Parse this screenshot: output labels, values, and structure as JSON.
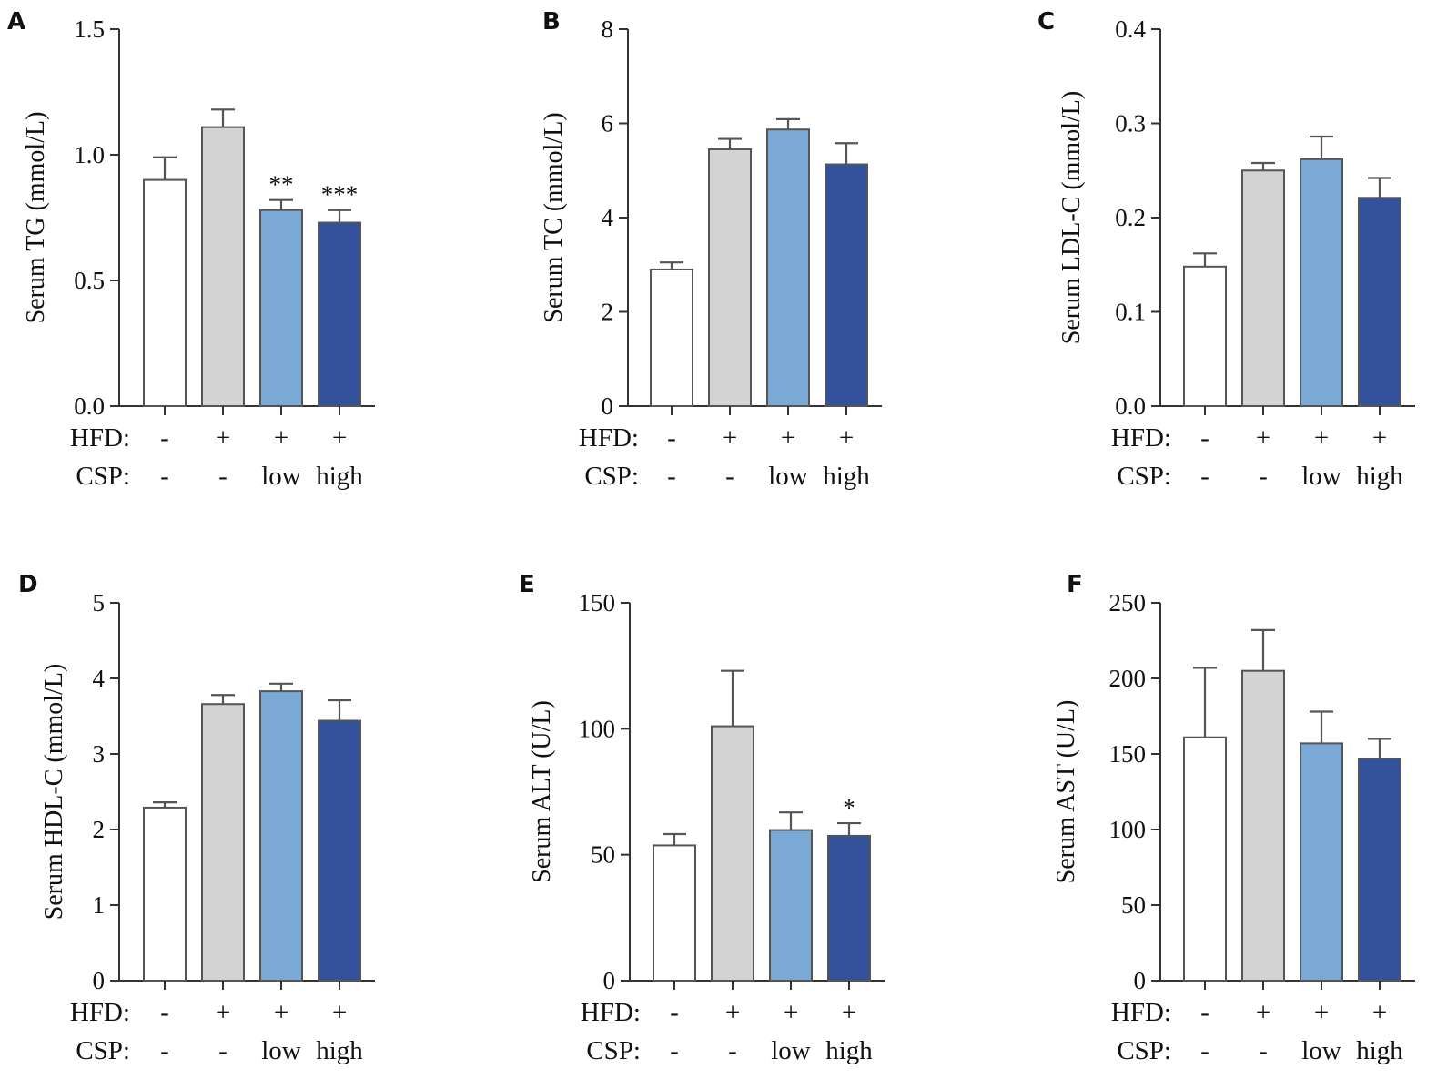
{
  "colors": {
    "bar_fills": [
      "#ffffff",
      "#d3d3d3",
      "#7ba9d6",
      "#34529c"
    ],
    "bar_outline": "#555555",
    "axis": "#333333"
  },
  "row_labels": [
    "HFD:",
    "CSP:"
  ],
  "groups": [
    {
      "hfd": "-",
      "csp": "-"
    },
    {
      "hfd": "+",
      "csp": "-"
    },
    {
      "hfd": "+",
      "csp": "low"
    },
    {
      "hfd": "+",
      "csp": "high"
    }
  ],
  "chart_data": [
    {
      "panel": "A",
      "type": "bar",
      "ylabel": "Serum TG (mmol/L)",
      "ylim": [
        0,
        1.5
      ],
      "yticks": [
        "0.0",
        "0.5",
        "1.0",
        "1.5"
      ],
      "ytick_values": [
        0,
        0.5,
        1.0,
        1.5
      ],
      "values": [
        0.9,
        1.11,
        0.78,
        0.73
      ],
      "errors": [
        0.09,
        0.07,
        0.04,
        0.05
      ],
      "significance": [
        "",
        "",
        "**",
        "***"
      ]
    },
    {
      "panel": "B",
      "type": "bar",
      "ylabel": "Serum TC (mmol/L)",
      "ylim": [
        0,
        8
      ],
      "yticks": [
        "0",
        "2",
        "4",
        "6",
        "8"
      ],
      "ytick_values": [
        0,
        2,
        4,
        6,
        8
      ],
      "values": [
        2.9,
        5.45,
        5.87,
        5.13
      ],
      "errors": [
        0.15,
        0.22,
        0.22,
        0.45
      ],
      "significance": [
        "",
        "",
        "",
        ""
      ]
    },
    {
      "panel": "C",
      "type": "bar",
      "ylabel": "Serum LDL-C (mmol/L)",
      "ylim": [
        0,
        0.4
      ],
      "yticks": [
        "0.0",
        "0.1",
        "0.2",
        "0.3",
        "0.4"
      ],
      "ytick_values": [
        0,
        0.1,
        0.2,
        0.3,
        0.4
      ],
      "values": [
        0.148,
        0.25,
        0.262,
        0.221
      ],
      "errors": [
        0.014,
        0.008,
        0.024,
        0.021
      ],
      "significance": [
        "",
        "",
        "",
        ""
      ]
    },
    {
      "panel": "D",
      "type": "bar",
      "ylabel": "Serum HDL-C (mmol/L)",
      "ylim": [
        0,
        5
      ],
      "yticks": [
        "0",
        "1",
        "2",
        "3",
        "4",
        "5"
      ],
      "ytick_values": [
        0,
        1,
        2,
        3,
        4,
        5
      ],
      "values": [
        2.29,
        3.66,
        3.83,
        3.44
      ],
      "errors": [
        0.07,
        0.12,
        0.1,
        0.27
      ],
      "significance": [
        "",
        "",
        "",
        ""
      ]
    },
    {
      "panel": "E",
      "type": "bar",
      "ylabel": "Serum ALT (U/L)",
      "ylim": [
        0,
        150
      ],
      "yticks": [
        "0",
        "50",
        "100",
        "150"
      ],
      "ytick_values": [
        0,
        50,
        100,
        150
      ],
      "values": [
        53.7,
        101.0,
        59.8,
        57.5
      ],
      "errors": [
        4.5,
        22.0,
        7.0,
        5.0
      ],
      "significance": [
        "",
        "",
        "",
        "*"
      ]
    },
    {
      "panel": "F",
      "type": "bar",
      "ylabel": "Serum AST (U/L)",
      "ylim": [
        0,
        250
      ],
      "yticks": [
        "0",
        "50",
        "100",
        "150",
        "200",
        "250"
      ],
      "ytick_values": [
        0,
        50,
        100,
        150,
        200,
        250
      ],
      "values": [
        161,
        205,
        157,
        147
      ],
      "errors": [
        46,
        27,
        21,
        13
      ],
      "significance": [
        "",
        "",
        "",
        ""
      ]
    }
  ]
}
